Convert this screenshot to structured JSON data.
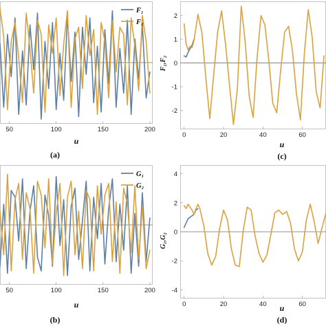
{
  "colors": {
    "series1": "#5b7fa6",
    "series2": "#dca13c"
  },
  "chart_data": [
    {
      "id": "a",
      "type": "line",
      "caption": "(a)",
      "xlabel": "u",
      "ylabel": "",
      "xlim": [
        40,
        203
      ],
      "ylim": [
        -2.6,
        2.6
      ],
      "xticks": [
        50,
        100,
        150,
        200
      ],
      "yticks": [],
      "grid": false,
      "legend": "top-right",
      "series": [
        {
          "name": "F₁",
          "x": [
            40,
            44,
            48,
            52,
            56,
            60,
            64,
            68,
            72,
            76,
            80,
            84,
            88,
            92,
            96,
            100,
            104,
            108,
            112,
            116,
            120,
            124,
            128,
            132,
            136,
            140,
            144,
            148,
            152,
            156,
            160,
            164,
            168,
            172,
            176,
            180,
            184,
            188,
            192,
            196,
            200
          ],
          "values": [
            0.8,
            -1.9,
            1.2,
            -0.6,
            1.9,
            -2.2,
            0.5,
            -1.8,
            1.6,
            -0.3,
            2.1,
            -2.4,
            0.9,
            -1.1,
            1.7,
            -2.0,
            0.4,
            -1.6,
            2.0,
            -0.8,
            1.3,
            -2.3,
            1.5,
            -0.5,
            1.9,
            -1.7,
            0.7,
            -2.1,
            1.4,
            -0.9,
            2.2,
            -1.9,
            0.6,
            -1.3,
            1.8,
            -2.2,
            1.0,
            -0.7,
            1.6,
            -1.5,
            -0.4
          ]
        },
        {
          "name": "F₂",
          "x": [
            40,
            44,
            48,
            52,
            56,
            60,
            64,
            68,
            72,
            76,
            80,
            84,
            88,
            92,
            96,
            100,
            104,
            108,
            112,
            116,
            120,
            124,
            128,
            132,
            136,
            140,
            144,
            148,
            152,
            156,
            160,
            164,
            168,
            172,
            176,
            180,
            184,
            188,
            192,
            196,
            200
          ],
          "values": [
            2.3,
            1.1,
            -2.0,
            0.9,
            1.7,
            0.2,
            -1.7,
            2.1,
            0.6,
            -1.3,
            1.8,
            1.2,
            -2.1,
            1.6,
            0.4,
            1.9,
            -1.4,
            0.8,
            2.2,
            -1.9,
            1.0,
            1.5,
            -1.1,
            2.0,
            0.3,
            1.4,
            -2.2,
            1.7,
            0.9,
            -1.5,
            1.8,
            -0.4,
            1.5,
            1.2,
            -1.8,
            1.9,
            0.7,
            -1.2,
            2.0,
            0.9,
            -1.3
          ]
        }
      ]
    },
    {
      "id": "b",
      "type": "line",
      "caption": "(b)",
      "xlabel": "u",
      "ylabel": "",
      "xlim": [
        40,
        203
      ],
      "ylim": [
        -2.6,
        2.6
      ],
      "xticks": [
        50,
        100,
        150,
        200
      ],
      "yticks": [],
      "grid": false,
      "legend": "top-right",
      "series": [
        {
          "name": "G₁",
          "x": [
            40,
            44,
            48,
            52,
            56,
            60,
            64,
            68,
            72,
            76,
            80,
            84,
            88,
            92,
            96,
            100,
            104,
            108,
            112,
            116,
            120,
            124,
            128,
            132,
            136,
            140,
            144,
            148,
            152,
            156,
            160,
            164,
            168,
            172,
            176,
            180,
            184,
            188,
            192,
            196,
            200
          ],
          "values": [
            -1.8,
            0.9,
            -2.1,
            1.5,
            1.2,
            -0.7,
            2.0,
            -1.9,
            0.6,
            1.7,
            -1.4,
            -2.0,
            1.3,
            0.4,
            -1.8,
            2.1,
            -0.9,
            1.1,
            -2.2,
            0.8,
            1.6,
            -1.5,
            0.2,
            1.9,
            -2.0,
            1.2,
            -0.6,
            1.8,
            -1.7,
            0.7,
            2.0,
            -1.6,
            0.9,
            -1.1,
            1.7,
            -2.1,
            0.5,
            -1.8,
            1.4,
            -1.6,
            0.3
          ]
        },
        {
          "name": "G₂",
          "x": [
            40,
            44,
            48,
            52,
            56,
            60,
            64,
            68,
            72,
            76,
            80,
            84,
            88,
            92,
            96,
            100,
            104,
            108,
            112,
            116,
            120,
            124,
            128,
            132,
            136,
            140,
            144,
            148,
            152,
            156,
            160,
            164,
            168,
            172,
            176,
            180,
            184,
            188,
            192,
            196,
            200
          ],
          "values": [
            0.6,
            -1.3,
            2.2,
            -2.0,
            1.1,
            1.8,
            -1.5,
            1.4,
            0.7,
            -2.1,
            1.9,
            1.3,
            -1.0,
            2.0,
            -1.7,
            0.5,
            1.8,
            -2.2,
            1.2,
            1.9,
            -1.3,
            0.6,
            -1.9,
            1.5,
            1.1,
            -2.0,
            1.7,
            -0.4,
            1.3,
            1.8,
            -1.6,
            1.0,
            -2.1,
            1.6,
            0.9,
            -1.2,
            1.7,
            -1.5,
            0.8,
            -1.9,
            -1.1
          ]
        }
      ]
    },
    {
      "id": "c",
      "type": "line",
      "caption": "(c)",
      "xlabel": "u",
      "ylabel": "F₁,F₂",
      "xlim": [
        -2,
        72
      ],
      "ylim": [
        -2.8,
        2.6
      ],
      "xticks": [
        0,
        20,
        40,
        60
      ],
      "yticks": [
        -2,
        -1,
        0,
        1,
        2
      ],
      "grid": false,
      "legend": "none",
      "series": [
        {
          "name": "",
          "x": [
            0,
            1,
            2,
            3,
            4,
            5
          ],
          "values": [
            0.3,
            0.25,
            0.45,
            0.6,
            0.75,
            1.0
          ]
        },
        {
          "name": "",
          "x": [
            0,
            1,
            2,
            3,
            4,
            5,
            7,
            9,
            11,
            13,
            15,
            17,
            19,
            21,
            23,
            25,
            27,
            29,
            31,
            33,
            35,
            37,
            39,
            41,
            43,
            45,
            47,
            49,
            51,
            53,
            55,
            57,
            59,
            61,
            63,
            65,
            67,
            69,
            71
          ],
          "values": [
            1.65,
            0.8,
            0.55,
            0.7,
            0.65,
            0.95,
            2.05,
            1.3,
            -0.6,
            -2.35,
            -0.5,
            1.3,
            2.2,
            0.8,
            -0.9,
            -2.6,
            -1.1,
            2.4,
            0.9,
            -1.4,
            -2.3,
            0.2,
            2.0,
            1.6,
            0.1,
            -1.7,
            -2.1,
            -0.3,
            1.3,
            1.55,
            0.5,
            -1.3,
            -2.4,
            0.4,
            2.25,
            1.1,
            -1.2,
            -1.9,
            0.3
          ]
        }
      ]
    },
    {
      "id": "d",
      "type": "line",
      "caption": "(d)",
      "xlabel": "u",
      "ylabel": "G₁,G₂",
      "xlim": [
        -2,
        72
      ],
      "ylim": [
        -4.6,
        4.6
      ],
      "xticks": [
        0,
        20,
        40,
        60
      ],
      "yticks": [
        -4,
        -2,
        0,
        2,
        4
      ],
      "grid": false,
      "legend": "none",
      "series": [
        {
          "name": "",
          "x": [
            0,
            1,
            2,
            3,
            4,
            5,
            6,
            7
          ],
          "values": [
            0.3,
            0.6,
            0.9,
            1.0,
            1.1,
            1.2,
            1.5,
            1.6
          ]
        },
        {
          "name": "",
          "x": [
            0,
            1,
            2,
            3,
            4,
            5,
            6,
            7,
            8,
            10,
            12,
            14,
            16,
            18,
            20,
            22,
            24,
            26,
            28,
            30,
            32,
            34,
            36,
            38,
            40,
            42,
            44,
            46,
            48,
            50,
            52,
            54,
            56,
            58,
            60,
            62,
            64,
            66,
            68,
            70,
            72
          ],
          "values": [
            1.8,
            1.6,
            1.9,
            1.7,
            1.5,
            1.2,
            1.6,
            1.9,
            1.6,
            0.4,
            -1.5,
            -2.3,
            -1.7,
            0.2,
            1.5,
            0.8,
            -1.2,
            -2.3,
            -2.4,
            0.1,
            1.7,
            1.5,
            -0.3,
            -1.5,
            -2.1,
            -1.6,
            -0.2,
            1.3,
            1.5,
            1.2,
            1.4,
            0.6,
            -1.2,
            -2.0,
            -1.4,
            0.8,
            1.9,
            0.7,
            -0.8,
            0.3,
            1.3
          ]
        }
      ]
    }
  ]
}
